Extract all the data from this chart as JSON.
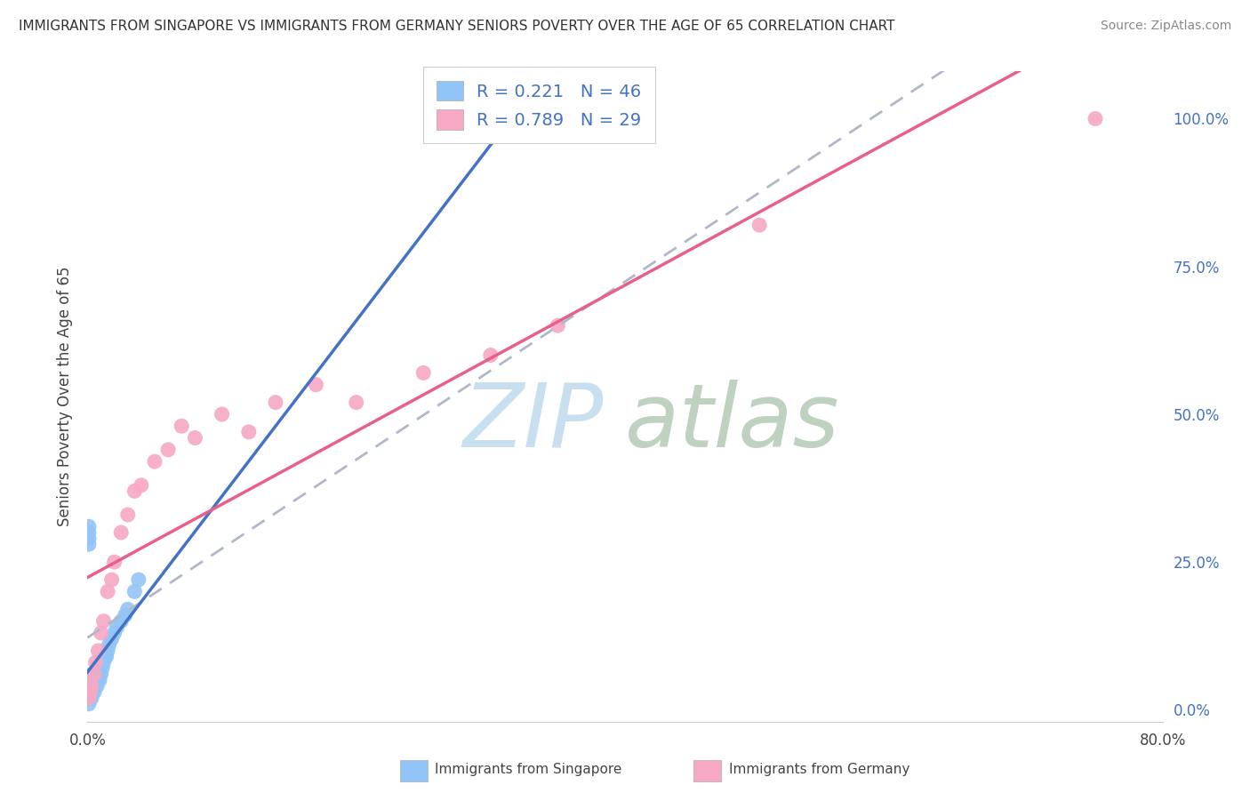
{
  "title": "IMMIGRANTS FROM SINGAPORE VS IMMIGRANTS FROM GERMANY SENIORS POVERTY OVER THE AGE OF 65 CORRELATION CHART",
  "source": "Source: ZipAtlas.com",
  "ylabel": "Seniors Poverty Over the Age of 65",
  "xlim": [
    0,
    0.8
  ],
  "ylim": [
    -0.02,
    1.08
  ],
  "xticks": [
    0.0,
    0.1,
    0.2,
    0.3,
    0.4,
    0.5,
    0.6,
    0.7,
    0.8
  ],
  "xticklabels": [
    "0.0%",
    "",
    "",
    "",
    "",
    "",
    "",
    "",
    "80.0%"
  ],
  "ytick_positions": [
    0.0,
    0.25,
    0.5,
    0.75,
    1.0
  ],
  "yticklabels_right": [
    "0.0%",
    "25.0%",
    "50.0%",
    "75.0%",
    "100.0%"
  ],
  "singapore_R": 0.221,
  "singapore_N": 46,
  "germany_R": 0.789,
  "germany_N": 29,
  "singapore_color": "#92c5f7",
  "germany_color": "#f7a8c4",
  "singapore_line_color": "#4472c4",
  "germany_line_color": "#e8608a",
  "trend_line_color": "#b0b8c8",
  "singapore_x": [
    0.001,
    0.001,
    0.001,
    0.002,
    0.002,
    0.002,
    0.002,
    0.003,
    0.003,
    0.003,
    0.003,
    0.004,
    0.004,
    0.004,
    0.005,
    0.005,
    0.005,
    0.006,
    0.006,
    0.007,
    0.007,
    0.008,
    0.008,
    0.009,
    0.009,
    0.01,
    0.01,
    0.011,
    0.012,
    0.013,
    0.014,
    0.015,
    0.016,
    0.018,
    0.02,
    0.022,
    0.025,
    0.028,
    0.03,
    0.035,
    0.038,
    0.001,
    0.001,
    0.001,
    0.001,
    0.001
  ],
  "singapore_y": [
    0.02,
    0.03,
    0.04,
    0.02,
    0.03,
    0.04,
    0.05,
    0.02,
    0.03,
    0.04,
    0.06,
    0.03,
    0.04,
    0.05,
    0.03,
    0.04,
    0.06,
    0.04,
    0.05,
    0.04,
    0.06,
    0.05,
    0.07,
    0.05,
    0.07,
    0.06,
    0.08,
    0.07,
    0.08,
    0.09,
    0.09,
    0.1,
    0.11,
    0.12,
    0.13,
    0.14,
    0.15,
    0.16,
    0.17,
    0.2,
    0.22,
    0.28,
    0.29,
    0.3,
    0.31,
    0.01
  ],
  "germany_x": [
    0.001,
    0.002,
    0.003,
    0.005,
    0.006,
    0.008,
    0.01,
    0.012,
    0.015,
    0.018,
    0.02,
    0.025,
    0.03,
    0.035,
    0.04,
    0.05,
    0.06,
    0.07,
    0.08,
    0.1,
    0.12,
    0.14,
    0.17,
    0.2,
    0.25,
    0.3,
    0.35,
    0.5,
    0.75
  ],
  "germany_y": [
    0.02,
    0.03,
    0.04,
    0.06,
    0.08,
    0.1,
    0.13,
    0.15,
    0.2,
    0.22,
    0.25,
    0.3,
    0.33,
    0.37,
    0.38,
    0.42,
    0.44,
    0.48,
    0.46,
    0.5,
    0.47,
    0.52,
    0.55,
    0.52,
    0.57,
    0.6,
    0.65,
    0.82,
    1.0
  ],
  "background_color": "#ffffff",
  "grid_color": "#d8dde8"
}
